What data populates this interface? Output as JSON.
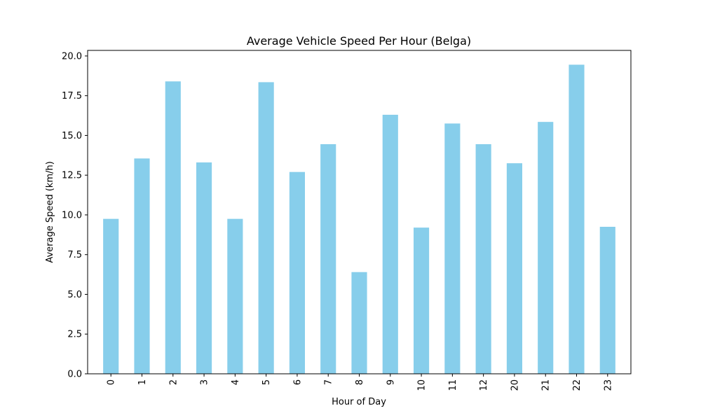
{
  "chart_data": {
    "type": "bar",
    "title": "Average Vehicle Speed Per Hour (Belga)",
    "xlabel": "Hour of Day",
    "ylabel": "Average Speed (km/h)",
    "categories": [
      "0",
      "1",
      "2",
      "3",
      "4",
      "5",
      "6",
      "7",
      "8",
      "9",
      "10",
      "11",
      "12",
      "20",
      "21",
      "22",
      "23"
    ],
    "values": [
      9.75,
      13.55,
      18.4,
      13.3,
      9.75,
      18.35,
      12.7,
      14.45,
      6.4,
      16.3,
      9.2,
      15.75,
      14.45,
      13.25,
      15.85,
      19.45,
      9.25
    ],
    "ylim": [
      0,
      20.35
    ],
    "yticks": [
      0.0,
      2.5,
      5.0,
      7.5,
      10.0,
      12.5,
      15.0,
      17.5,
      20.0
    ],
    "ytick_labels": [
      "0.0",
      "2.5",
      "5.0",
      "7.5",
      "10.0",
      "12.5",
      "15.0",
      "17.5",
      "20.0"
    ],
    "bar_color": "#87ceeb",
    "grid": false,
    "legend": "none"
  }
}
